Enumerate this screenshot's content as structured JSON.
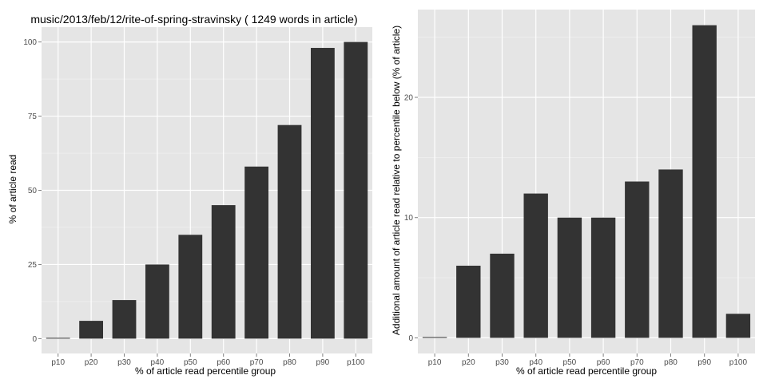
{
  "chart_data": [
    {
      "type": "bar",
      "title": "music/2013/feb/12/rite-of-spring-stravinsky ( 1249 words in article)",
      "xlabel": "% of article read percentile group",
      "ylabel": "% of article read",
      "categories": [
        "p10",
        "p20",
        "p30",
        "p40",
        "p50",
        "p60",
        "p70",
        "p80",
        "p90",
        "p100"
      ],
      "values": [
        0,
        6,
        13,
        25,
        35,
        45,
        58,
        72,
        98,
        100
      ],
      "yticks": [
        0,
        25,
        50,
        75,
        100
      ],
      "ylim": [
        -5,
        105
      ],
      "grid": true,
      "bar_color": "#333333",
      "panel_color": "#e5e5e5"
    },
    {
      "type": "bar",
      "title": "",
      "xlabel": "% of article read percentile group",
      "ylabel": "Additional amount of article read relative to percentile below (% of article)",
      "categories": [
        "p10",
        "p20",
        "p30",
        "p40",
        "p50",
        "p60",
        "p70",
        "p80",
        "p90",
        "p100"
      ],
      "values": [
        0,
        6,
        7,
        12,
        10,
        10,
        13,
        14,
        26,
        2
      ],
      "yticks": [
        0,
        10,
        20
      ],
      "ylim": [
        -1.3,
        27.3
      ],
      "grid": true,
      "bar_color": "#333333",
      "panel_color": "#e5e5e5"
    }
  ]
}
